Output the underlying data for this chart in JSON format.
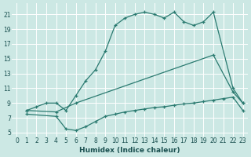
{
  "xlabel": "Humidex (Indice chaleur)",
  "ylabel": "",
  "bg_color": "#cce8e4",
  "line_color": "#2a7a70",
  "grid_color": "#ffffff",
  "xlim": [
    -0.5,
    23.5
  ],
  "ylim": [
    4.5,
    22.5
  ],
  "xticks": [
    0,
    1,
    2,
    3,
    4,
    5,
    6,
    7,
    8,
    9,
    10,
    11,
    12,
    13,
    14,
    15,
    16,
    17,
    18,
    19,
    20,
    21,
    22,
    23
  ],
  "yticks": [
    5,
    7,
    9,
    11,
    13,
    15,
    17,
    19,
    21
  ],
  "line1_x": [
    1,
    2,
    3,
    4,
    5,
    6,
    7,
    8,
    9,
    10,
    11,
    12,
    13,
    14,
    15,
    16,
    17,
    18,
    19,
    20,
    22,
    23
  ],
  "line1_y": [
    8,
    8.5,
    9,
    9,
    8,
    10,
    12,
    13.5,
    16,
    19.5,
    20.5,
    21,
    21.3,
    21,
    20.5,
    21.3,
    20,
    19.5,
    20,
    21.3,
    11,
    9
  ],
  "line2_x": [
    1,
    4,
    6,
    20,
    22,
    23
  ],
  "line2_y": [
    8,
    7.8,
    9,
    15.5,
    10.5,
    9
  ],
  "line3_x": [
    1,
    4,
    5,
    6,
    7,
    8,
    9,
    10,
    11,
    12,
    13,
    14,
    15,
    16,
    17,
    18,
    19,
    20,
    21,
    22,
    23
  ],
  "line3_y": [
    7.5,
    7.2,
    5.5,
    5.3,
    5.8,
    6.5,
    7.2,
    7.5,
    7.8,
    8.0,
    8.2,
    8.4,
    8.5,
    8.7,
    8.9,
    9.0,
    9.2,
    9.4,
    9.6,
    9.8,
    8.0
  ]
}
